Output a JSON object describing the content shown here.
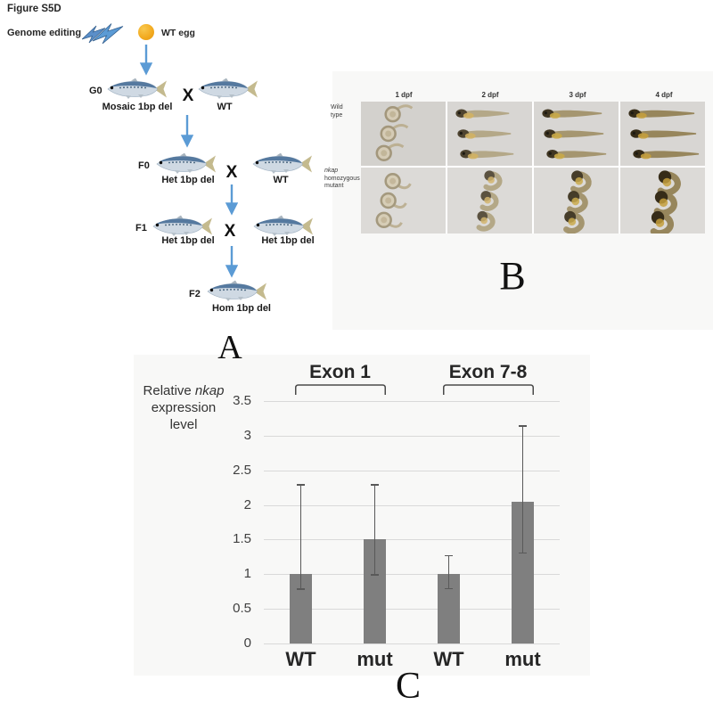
{
  "figure_label": "Figure S5D",
  "panel_a": {
    "letter": "A",
    "genome_editing_label": "Genome editing",
    "egg_label": "WT egg",
    "cross_symbol": "X",
    "arrow_color": "#5b9bd5",
    "generations": [
      {
        "gen": "G0",
        "left_label": "Mosaic 1bp del",
        "right_label": "WT"
      },
      {
        "gen": "F0",
        "left_label": "Het 1bp del",
        "right_label": "WT"
      },
      {
        "gen": "F1",
        "left_label": "Het 1bp del",
        "right_label": "Het 1bp del"
      },
      {
        "gen": "F2",
        "left_label": "Hom 1bp del",
        "right_label": ""
      }
    ]
  },
  "panel_b": {
    "letter": "B",
    "column_headers": [
      "1 dpf",
      "2 dpf",
      "3 dpf",
      "4 dpf"
    ],
    "row_labels": [
      {
        "lines": [
          "Wild",
          "type"
        ],
        "italic_first": false
      },
      {
        "lines": [
          "nkap",
          "homozygous",
          "mutant"
        ],
        "italic_first": true
      }
    ]
  },
  "panel_c": {
    "letter": "C"
  },
  "chart_data": {
    "type": "bar",
    "title": "",
    "ylabel": "Relative nkap expression level",
    "ylabel_parts": {
      "pre": "Relative ",
      "italic": "nkap",
      "line2": "expression",
      "line3": "level"
    },
    "groups": [
      {
        "label": "Exon 1",
        "bars": [
          0,
          1
        ]
      },
      {
        "label": "Exon 7-8",
        "bars": [
          2,
          3
        ]
      }
    ],
    "categories": [
      "WT",
      "mut",
      "WT",
      "mut"
    ],
    "values": [
      1.0,
      1.5,
      1.0,
      2.04
    ],
    "error_low": [
      0.78,
      0.99,
      0.79,
      1.3
    ],
    "error_high": [
      2.3,
      2.3,
      1.28,
      3.15
    ],
    "yticks": [
      0,
      0.5,
      1,
      1.5,
      2,
      2.5,
      3,
      3.5
    ],
    "ylim": [
      0,
      3.5
    ],
    "grid": true,
    "legend": "none",
    "bar_color": "#7f7f7f",
    "error_color": "#595959",
    "grid_color": "#d9d9d9"
  }
}
